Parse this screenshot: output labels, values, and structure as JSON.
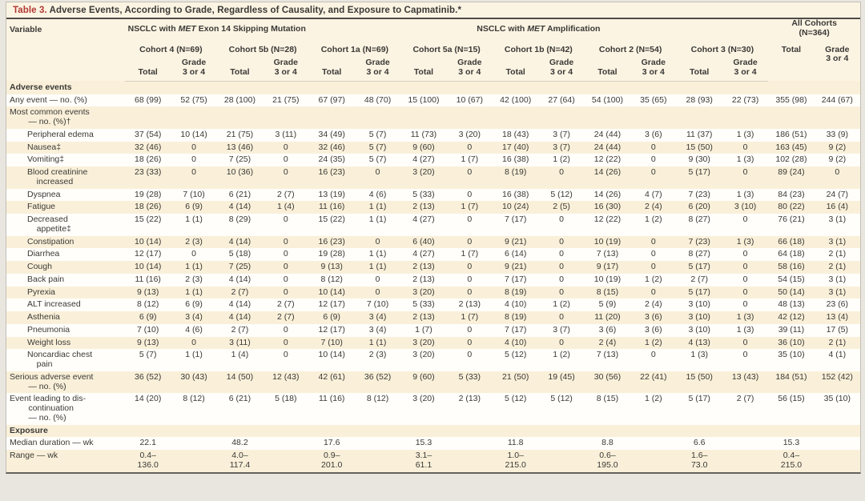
{
  "title": {
    "label": "Table 3.",
    "text": " Adverse Events, According to Grade, Regardless of Causality, and Exposure to Capmatinib.*"
  },
  "header": {
    "variable_label": "Variable",
    "group_exon14": {
      "pre": "NSCLC with ",
      "gene": "MET",
      "post": " Exon 14 Skipping Mutation"
    },
    "group_amp": {
      "pre": "NSCLC with ",
      "gene": "MET",
      "post": " Amplification"
    },
    "group_all": "All Cohorts\n(N=364)",
    "cohorts": [
      "Cohort 4 (N=69)",
      "Cohort 5b (N=28)",
      "Cohort 1a (N=69)",
      "Cohort 5a (N=15)",
      "Cohort 1b (N=42)",
      "Cohort 2 (N=54)",
      "Cohort 3 (N=30)"
    ],
    "total_label": "Total",
    "grade_label": "Grade\n3 or 4"
  },
  "rows": [
    {
      "type": "section",
      "label": "Adverse events"
    },
    {
      "type": "data",
      "indent": 0,
      "label": "Any event — no. (%)",
      "values": [
        "68 (99)",
        "52 (75)",
        "28 (100)",
        "21 (75)",
        "67 (97)",
        "48 (70)",
        "15 (100)",
        "10 (67)",
        "42 (100)",
        "27 (64)",
        "54 (100)",
        "35 (65)",
        "28 (93)",
        "22 (73)",
        "355 (98)",
        "244 (67)"
      ]
    },
    {
      "type": "data",
      "indent": 0,
      "label": "Most common events\n        — no. (%)†",
      "values": [
        "",
        "",
        "",
        "",
        "",
        "",
        "",
        "",
        "",
        "",
        "",
        "",
        "",
        "",
        "",
        ""
      ]
    },
    {
      "type": "data",
      "indent": 1,
      "label": "Peripheral edema",
      "values": [
        "37 (54)",
        "10 (14)",
        "21 (75)",
        "3 (11)",
        "34 (49)",
        "5 (7)",
        "11 (73)",
        "3 (20)",
        "18 (43)",
        "3 (7)",
        "24 (44)",
        "3 (6)",
        "11 (37)",
        "1 (3)",
        "186 (51)",
        "33 (9)"
      ]
    },
    {
      "type": "data",
      "indent": 1,
      "label": "Nausea‡",
      "values": [
        "32 (46)",
        "0",
        "13 (46)",
        "0",
        "32 (46)",
        "5 (7)",
        "9 (60)",
        "0",
        "17 (40)",
        "3 (7)",
        "24 (44)",
        "0",
        "15 (50)",
        "0",
        "163 (45)",
        "9 (2)"
      ]
    },
    {
      "type": "data",
      "indent": 1,
      "label": "Vomiting‡",
      "values": [
        "18 (26)",
        "0",
        "7 (25)",
        "0",
        "24 (35)",
        "5 (7)",
        "4 (27)",
        "1 (7)",
        "16 (38)",
        "1 (2)",
        "12 (22)",
        "0",
        "9 (30)",
        "1 (3)",
        "102 (28)",
        "9 (2)"
      ]
    },
    {
      "type": "data",
      "indent": 1,
      "label": "Blood creatinine\n    increased",
      "values": [
        "23 (33)",
        "0",
        "10 (36)",
        "0",
        "16 (23)",
        "0",
        "3 (20)",
        "0",
        "8 (19)",
        "0",
        "14 (26)",
        "0",
        "5 (17)",
        "0",
        "89 (24)",
        "0"
      ]
    },
    {
      "type": "data",
      "indent": 1,
      "label": "Dyspnea",
      "values": [
        "19 (28)",
        "7 (10)",
        "6 (21)",
        "2 (7)",
        "13 (19)",
        "4 (6)",
        "5 (33)",
        "0",
        "16 (38)",
        "5 (12)",
        "14 (26)",
        "4 (7)",
        "7 (23)",
        "1 (3)",
        "84 (23)",
        "24 (7)"
      ]
    },
    {
      "type": "data",
      "indent": 1,
      "label": "Fatigue",
      "values": [
        "18 (26)",
        "6 (9)",
        "4 (14)",
        "1 (4)",
        "11 (16)",
        "1 (1)",
        "2 (13)",
        "1 (7)",
        "10 (24)",
        "2 (5)",
        "16 (30)",
        "2 (4)",
        "6 (20)",
        "3 (10)",
        "80 (22)",
        "16 (4)"
      ]
    },
    {
      "type": "data",
      "indent": 1,
      "label": "Decreased\n    appetite‡",
      "values": [
        "15 (22)",
        "1 (1)",
        "8 (29)",
        "0",
        "15 (22)",
        "1 (1)",
        "4 (27)",
        "0",
        "7 (17)",
        "0",
        "12 (22)",
        "1 (2)",
        "8 (27)",
        "0",
        "76 (21)",
        "3 (1)"
      ]
    },
    {
      "type": "data",
      "indent": 1,
      "label": "Constipation",
      "values": [
        "10 (14)",
        "2 (3)",
        "4 (14)",
        "0",
        "16 (23)",
        "0",
        "6 (40)",
        "0",
        "9 (21)",
        "0",
        "10 (19)",
        "0",
        "7 (23)",
        "1 (3)",
        "66 (18)",
        "3 (1)"
      ]
    },
    {
      "type": "data",
      "indent": 1,
      "label": "Diarrhea",
      "values": [
        "12 (17)",
        "0",
        "5 (18)",
        "0",
        "19 (28)",
        "1 (1)",
        "4 (27)",
        "1 (7)",
        "6 (14)",
        "0",
        "7 (13)",
        "0",
        "8 (27)",
        "0",
        "64 (18)",
        "2 (1)"
      ]
    },
    {
      "type": "data",
      "indent": 1,
      "label": "Cough",
      "values": [
        "10 (14)",
        "1 (1)",
        "7 (25)",
        "0",
        "9 (13)",
        "1 (1)",
        "2 (13)",
        "0",
        "9 (21)",
        "0",
        "9 (17)",
        "0",
        "5 (17)",
        "0",
        "58 (16)",
        "2 (1)"
      ]
    },
    {
      "type": "data",
      "indent": 1,
      "label": "Back pain",
      "values": [
        "11 (16)",
        "2 (3)",
        "4 (14)",
        "0",
        "8 (12)",
        "0",
        "2 (13)",
        "0",
        "7 (17)",
        "0",
        "10 (19)",
        "1 (2)",
        "2 (7)",
        "0",
        "54 (15)",
        "3 (1)"
      ]
    },
    {
      "type": "data",
      "indent": 1,
      "label": "Pyrexia",
      "values": [
        "9 (13)",
        "1 (1)",
        "2 (7)",
        "0",
        "10 (14)",
        "0",
        "3 (20)",
        "0",
        "8 (19)",
        "0",
        "8 (15)",
        "0",
        "5 (17)",
        "0",
        "50 (14)",
        "3 (1)"
      ]
    },
    {
      "type": "data",
      "indent": 1,
      "label": "ALT increased",
      "values": [
        "8 (12)",
        "6 (9)",
        "4 (14)",
        "2 (7)",
        "12 (17)",
        "7 (10)",
        "5 (33)",
        "2 (13)",
        "4 (10)",
        "1 (2)",
        "5 (9)",
        "2 (4)",
        "3 (10)",
        "0",
        "48 (13)",
        "23 (6)"
      ]
    },
    {
      "type": "data",
      "indent": 1,
      "label": "Asthenia",
      "values": [
        "6 (9)",
        "3 (4)",
        "4 (14)",
        "2 (7)",
        "6 (9)",
        "3 (4)",
        "2 (13)",
        "1 (7)",
        "8 (19)",
        "0",
        "11 (20)",
        "3 (6)",
        "3 (10)",
        "1 (3)",
        "42 (12)",
        "13 (4)"
      ]
    },
    {
      "type": "data",
      "indent": 1,
      "label": "Pneumonia",
      "values": [
        "7 (10)",
        "4 (6)",
        "2 (7)",
        "0",
        "12 (17)",
        "3 (4)",
        "1 (7)",
        "0",
        "7 (17)",
        "3 (7)",
        "3 (6)",
        "3 (6)",
        "3 (10)",
        "1 (3)",
        "39 (11)",
        "17 (5)"
      ]
    },
    {
      "type": "data",
      "indent": 1,
      "label": "Weight loss",
      "values": [
        "9 (13)",
        "0",
        "3 (11)",
        "0",
        "7 (10)",
        "1 (1)",
        "3 (20)",
        "0",
        "4 (10)",
        "0",
        "2 (4)",
        "1 (2)",
        "4 (13)",
        "0",
        "36 (10)",
        "2 (1)"
      ]
    },
    {
      "type": "data",
      "indent": 1,
      "label": "Noncardiac chest\n    pain",
      "values": [
        "5 (7)",
        "1 (1)",
        "1 (4)",
        "0",
        "10 (14)",
        "2 (3)",
        "3 (20)",
        "0",
        "5 (12)",
        "1 (2)",
        "7 (13)",
        "0",
        "1 (3)",
        "0",
        "35 (10)",
        "4 (1)"
      ]
    },
    {
      "type": "data",
      "indent": 0,
      "label": "Serious adverse event\n        — no. (%)",
      "values": [
        "36 (52)",
        "30 (43)",
        "14 (50)",
        "12 (43)",
        "42 (61)",
        "36 (52)",
        "9 (60)",
        "5 (33)",
        "21 (50)",
        "19 (45)",
        "30 (56)",
        "22 (41)",
        "15 (50)",
        "13 (43)",
        "184 (51)",
        "152 (42)"
      ]
    },
    {
      "type": "data",
      "indent": 0,
      "label": "Event leading to dis-\n        continuation\n        — no. (%)",
      "values": [
        "14 (20)",
        "8 (12)",
        "6 (21)",
        "5 (18)",
        "11 (16)",
        "8 (12)",
        "3 (20)",
        "2 (13)",
        "5 (12)",
        "5 (12)",
        "8 (15)",
        "1 (2)",
        "5 (17)",
        "2 (7)",
        "56 (15)",
        "35 (10)"
      ]
    },
    {
      "type": "section",
      "label": "Exposure"
    },
    {
      "type": "data",
      "indent": 0,
      "label": "Median duration — wk",
      "values": [
        "22.1",
        "",
        "48.2",
        "",
        "17.6",
        "",
        "15.3",
        "",
        "11.8",
        "",
        "8.8",
        "",
        "6.6",
        "",
        "15.3",
        ""
      ]
    },
    {
      "type": "data",
      "indent": 0,
      "label": "Range — wk",
      "values": [
        "0.4–\n136.0",
        "",
        "4.0–\n117.4",
        "",
        "0.9–\n201.0",
        "",
        "3.1–\n61.1",
        "",
        "1.0–\n215.0",
        "",
        "0.6–\n195.0",
        "",
        "1.6–\n73.0",
        "",
        "0.4–\n215.0",
        ""
      ]
    }
  ]
}
